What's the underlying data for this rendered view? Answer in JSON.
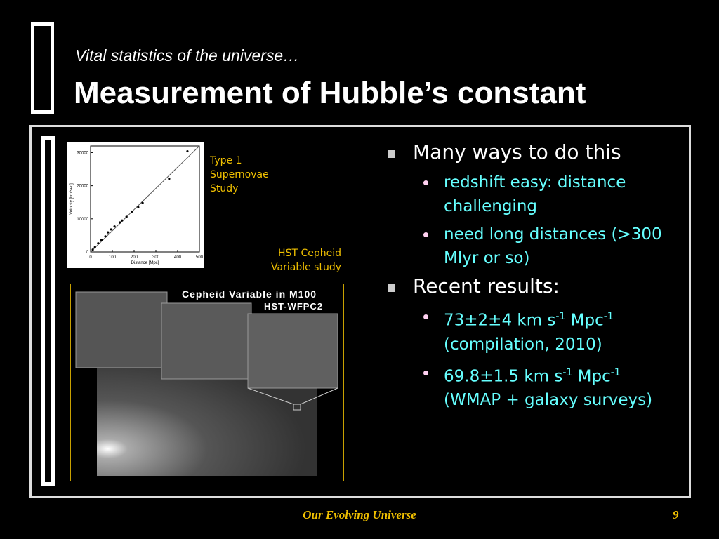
{
  "header": {
    "subtitle": "Vital statistics of the universe…",
    "title": "Measurement of Hubble’s constant"
  },
  "hubble_plot": {
    "type": "scatter",
    "caption": [
      "Type 1",
      "Supernovae",
      "Study"
    ],
    "xlabel": "Distance [Mpc]",
    "ylabel": "Velocity [km/sec]",
    "xlim": [
      0,
      500
    ],
    "xticks": [
      0,
      100,
      200,
      300,
      400,
      500
    ],
    "ylim": [
      0,
      32000
    ],
    "yticks": [
      0,
      10000,
      20000,
      30000
    ],
    "x": [
      445,
      361,
      239,
      219,
      190,
      165,
      145,
      135,
      110,
      94,
      80,
      68,
      50,
      35,
      20,
      10
    ],
    "y": [
      30400,
      22100,
      14800,
      13500,
      12200,
      10600,
      9500,
      8900,
      7700,
      6800,
      5900,
      4700,
      3600,
      2600,
      1400,
      700
    ],
    "fit": {
      "x": [
        0,
        500
      ],
      "y": [
        0,
        32000
      ]
    }
  },
  "cepheid_image": {
    "caption": [
      "HST Cepheid",
      "Variable study"
    ],
    "title": "Cepheid Variable in M100",
    "subtitle": "HST-WFPC2"
  },
  "bullets": [
    {
      "text": "Many ways to do this",
      "items": [
        [
          "redshift easy: distance challenging"
        ],
        [
          "need long distances (>300 Mlyr or so)"
        ]
      ]
    },
    {
      "text": "Recent results:",
      "items": [
        [
          "73±2±4 km s",
          "-1",
          " Mpc",
          "-1",
          " (compilation, 2010)"
        ],
        [
          "69.8±1.5 km s",
          "-1",
          " Mpc",
          "-1",
          " (WMAP + galaxy surveys)"
        ]
      ]
    }
  ],
  "footer": {
    "text": "Our Evolving Universe",
    "page": "9"
  }
}
